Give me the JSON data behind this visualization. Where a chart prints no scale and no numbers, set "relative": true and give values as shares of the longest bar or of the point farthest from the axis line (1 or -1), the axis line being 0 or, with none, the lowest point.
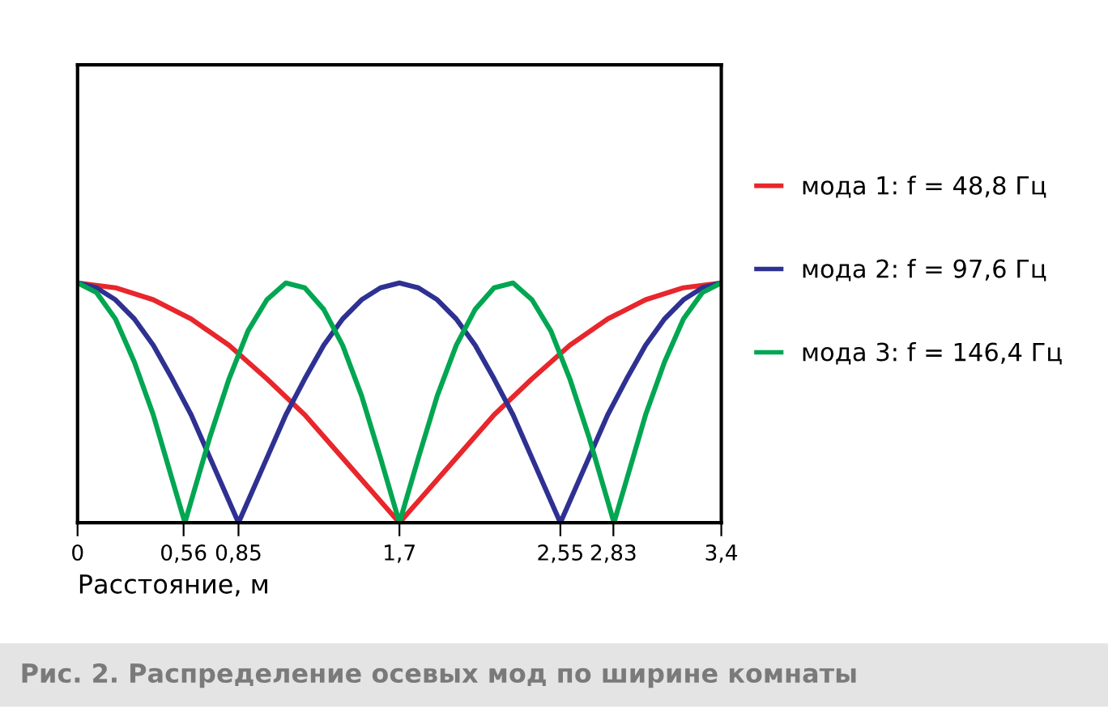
{
  "chart_data": {
    "type": "line",
    "relative": true,
    "xlabel": "Расстояние, м",
    "xlim": [
      0,
      3.4
    ],
    "xticks": [
      0,
      {
        "value": 0.56,
        "label": "0,56"
      },
      {
        "value": 0.85,
        "label": "0,85"
      },
      {
        "value": 1.7,
        "label": "1,7"
      },
      {
        "value": 2.55,
        "label": "2,55"
      },
      {
        "value": 2.83,
        "label": "2,83"
      },
      {
        "value": 3.4,
        "label": "3,4"
      }
    ],
    "tick_labels": "x",
    "grid": false,
    "legend": "right",
    "marker": "none",
    "line_style": "solid",
    "annotations": [
      "Рис. 2. Распределение осевых мод по ширине комнаты"
    ],
    "series": [
      {
        "name": "мода 1: f = 48,8 Гц",
        "color": "#e8262b",
        "x": [
          0,
          0.2,
          0.4,
          0.6,
          0.8,
          1.0,
          1.2,
          1.4,
          1.6,
          1.7,
          1.8,
          2.0,
          2.2,
          2.4,
          2.6,
          2.8,
          3.0,
          3.2,
          3.4
        ],
        "values": [
          1,
          0.98,
          0.93,
          0.85,
          0.74,
          0.6,
          0.45,
          0.27,
          0.09,
          0,
          0.09,
          0.27,
          0.45,
          0.6,
          0.74,
          0.85,
          0.93,
          0.98,
          1
        ]
      },
      {
        "name": "мода 2: f = 97,6 Гц",
        "color": "#2e3192",
        "x": [
          0,
          0.1,
          0.2,
          0.3,
          0.4,
          0.5,
          0.6,
          0.7,
          0.8,
          0.85,
          0.9,
          1.0,
          1.1,
          1.2,
          1.3,
          1.4,
          1.5,
          1.6,
          1.7,
          1.8,
          1.9,
          2.0,
          2.1,
          2.2,
          2.3,
          2.4,
          2.5,
          2.55,
          2.6,
          2.7,
          2.8,
          2.9,
          3.0,
          3.1,
          3.2,
          3.3,
          3.4
        ],
        "values": [
          1,
          0.98,
          0.93,
          0.85,
          0.74,
          0.6,
          0.45,
          0.27,
          0.09,
          0,
          0.09,
          0.27,
          0.45,
          0.6,
          0.74,
          0.85,
          0.93,
          0.98,
          1,
          0.98,
          0.93,
          0.85,
          0.74,
          0.6,
          0.45,
          0.27,
          0.09,
          0,
          0.09,
          0.27,
          0.45,
          0.6,
          0.74,
          0.85,
          0.93,
          0.98,
          1
        ]
      },
      {
        "name": "мода 3: f = 146,4 Гц",
        "color": "#00a651",
        "x": [
          0,
          0.1,
          0.2,
          0.3,
          0.4,
          0.5,
          0.567,
          0.6,
          0.7,
          0.8,
          0.9,
          1.0,
          1.1,
          1.2,
          1.3,
          1.4,
          1.5,
          1.6,
          1.7,
          1.8,
          1.9,
          2.0,
          2.1,
          2.2,
          2.3,
          2.4,
          2.5,
          2.6,
          2.7,
          2.8,
          2.833,
          2.9,
          3.0,
          3.1,
          3.2,
          3.3,
          3.4
        ],
        "values": [
          1,
          0.96,
          0.85,
          0.67,
          0.45,
          0.18,
          0,
          0.09,
          0.36,
          0.6,
          0.8,
          0.93,
          1,
          0.98,
          0.89,
          0.74,
          0.53,
          0.27,
          0,
          0.27,
          0.53,
          0.74,
          0.89,
          0.98,
          1,
          0.93,
          0.8,
          0.6,
          0.36,
          0.09,
          0,
          0.18,
          0.45,
          0.67,
          0.85,
          0.96,
          1
        ]
      }
    ]
  }
}
